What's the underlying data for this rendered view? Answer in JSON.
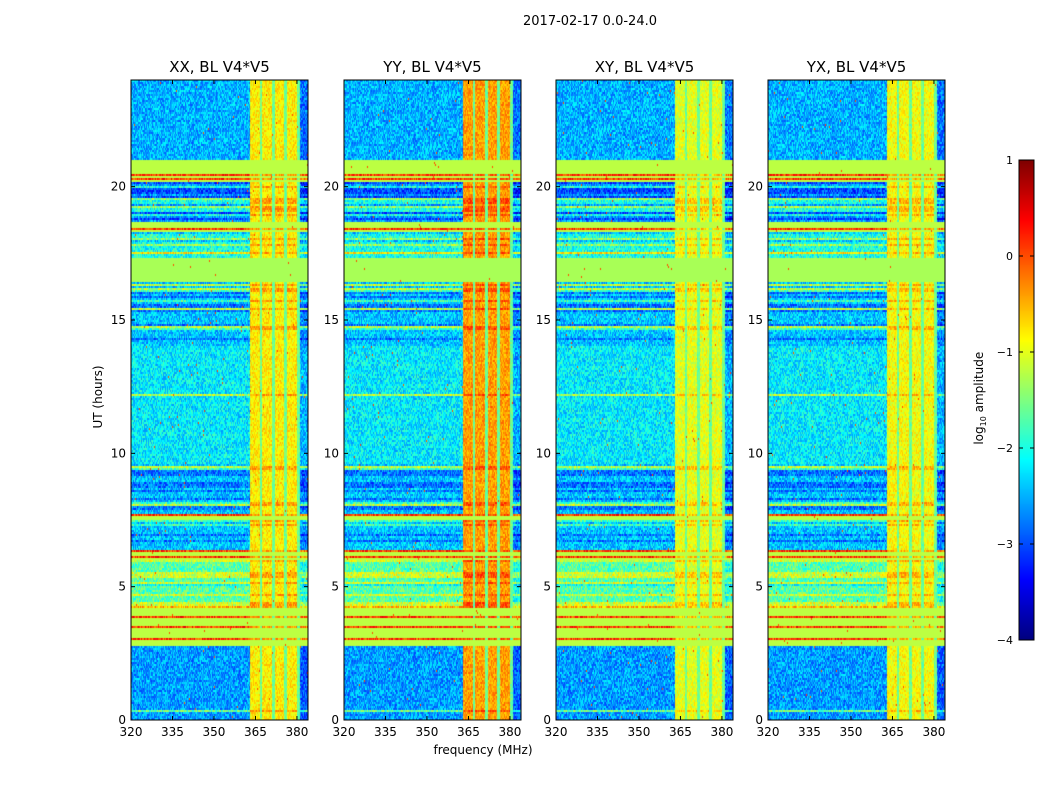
{
  "figure": {
    "suptitle": "2017-02-17 0.0-24.0",
    "xlabel": "frequency (MHz)",
    "ylabel": "UT (hours)",
    "colorbar_label_prefix": "log",
    "colorbar_label_sub": "10",
    "colorbar_label_suffix": " amplitude"
  },
  "chart_data": {
    "type": "heatmap",
    "title": "2017-02-17 0.0-24.0",
    "xlabel": "frequency (MHz)",
    "ylabel": "UT (hours)",
    "xlim": [
      320,
      384
    ],
    "ylim": [
      0,
      24
    ],
    "xticks": [
      "320",
      "335",
      "350",
      "365",
      "380"
    ],
    "yticks": [
      "0",
      "5",
      "10",
      "15",
      "20"
    ],
    "colormap": "jet",
    "colorbar": {
      "label": "log10 amplitude",
      "range": [
        -4,
        1
      ],
      "ticks": [
        "1",
        "0",
        "−1",
        "−2",
        "−3",
        "−4"
      ]
    },
    "panels": [
      {
        "title": "XX, BL V4*V5",
        "rfi_level": -0.8
      },
      {
        "title": "YY, BL V4*V5",
        "rfi_level": -0.4
      },
      {
        "title": "XY, BL V4*V5",
        "rfi_level": -1.0
      },
      {
        "title": "YX, BL V4*V5",
        "rfi_level": -0.9
      }
    ],
    "time_segments": [
      {
        "start": 0.0,
        "end": 2.8,
        "kind": "noisy",
        "level": -2.6
      },
      {
        "start": 2.8,
        "end": 4.2,
        "kind": "flagged",
        "level": -1.2
      },
      {
        "start": 4.2,
        "end": 6.0,
        "kind": "lines",
        "level": -1.7
      },
      {
        "start": 6.0,
        "end": 6.4,
        "kind": "flagged",
        "level": -1.2
      },
      {
        "start": 6.4,
        "end": 7.5,
        "kind": "lines",
        "level": -2.4
      },
      {
        "start": 7.5,
        "end": 7.7,
        "kind": "flagged",
        "level": -1.2
      },
      {
        "start": 7.7,
        "end": 9.6,
        "kind": "lines",
        "level": -2.4
      },
      {
        "start": 9.6,
        "end": 14.0,
        "kind": "noisy",
        "level": -2.2
      },
      {
        "start": 14.0,
        "end": 16.4,
        "kind": "lines",
        "level": -2.4
      },
      {
        "start": 16.4,
        "end": 17.3,
        "kind": "flagged",
        "level": -1.3
      },
      {
        "start": 17.3,
        "end": 18.3,
        "kind": "lines",
        "level": -2.0
      },
      {
        "start": 18.3,
        "end": 18.7,
        "kind": "flagged",
        "level": -1.2
      },
      {
        "start": 18.7,
        "end": 20.2,
        "kind": "lines",
        "level": -2.6
      },
      {
        "start": 20.2,
        "end": 21.0,
        "kind": "flagged",
        "level": -1.2
      },
      {
        "start": 21.0,
        "end": 24.0,
        "kind": "noisy",
        "level": -2.5
      }
    ],
    "rfi_band_mhz": [
      363,
      381
    ],
    "rfi_gaps_mhz": [
      367,
      371.5,
      376,
      380.5
    ]
  }
}
